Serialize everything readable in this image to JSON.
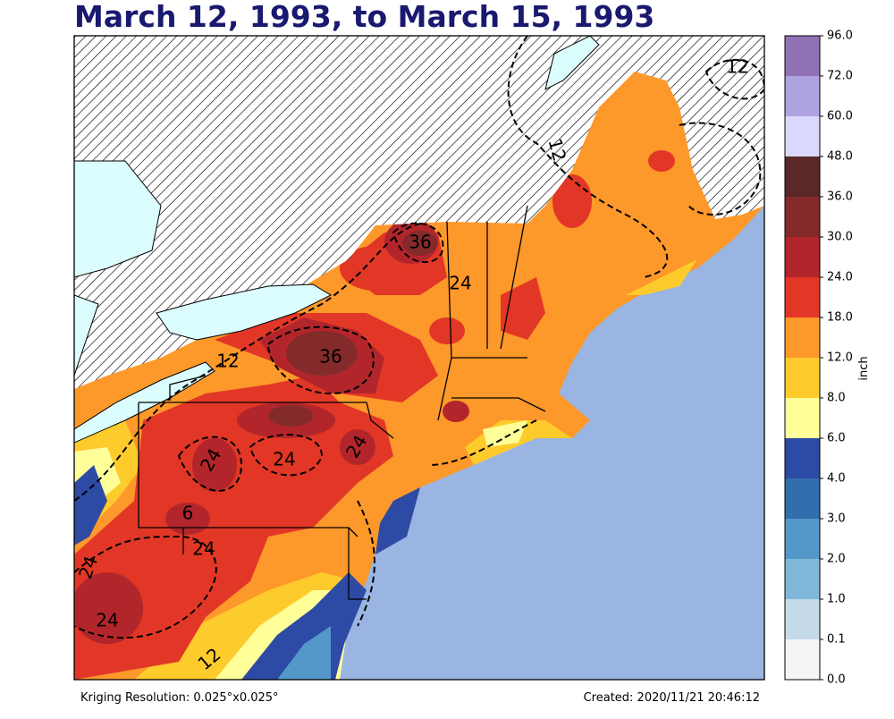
{
  "title": "March 12, 1993, to March 15, 1993",
  "footer": {
    "left": "Kriging Resolution: 0.025°x0.025°",
    "right": "Created: 2020/11/21 20:46:12"
  },
  "colorbar": {
    "unit": "inch",
    "labels": [
      "0.0",
      "0.1",
      "1.0",
      "2.0",
      "3.0",
      "4.0",
      "6.0",
      "8.0",
      "12.0",
      "18.0",
      "24.0",
      "30.0",
      "36.0",
      "48.0",
      "60.0",
      "72.0",
      "96.0"
    ],
    "colors": [
      "#f5f5f5",
      "#c6dbea",
      "#80b8da",
      "#5498c9",
      "#326dad",
      "#2d4aa4",
      "#ffff9a",
      "#fecb2d",
      "#fd982a",
      "#e23726",
      "#b2262b",
      "#842a2b",
      "#5a2828",
      "#dbd8fd",
      "#aea2e0",
      "#9272b6"
    ]
  },
  "map": {
    "contour_labels": [
      "12",
      "12",
      "12",
      "12",
      "24",
      "24",
      "24",
      "24",
      "24",
      "24",
      "24",
      "36",
      "36",
      "6"
    ]
  }
}
